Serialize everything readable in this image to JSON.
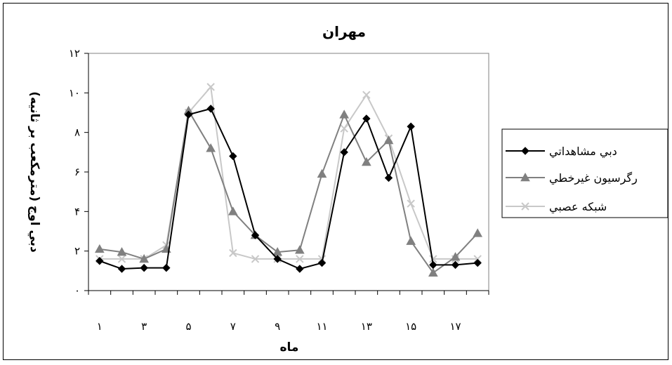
{
  "chart_data": {
    "type": "line",
    "title": "مهران",
    "xlabel": "ماه",
    "ylabel": "دبي اوج (مترمكعب بر ثانيه)",
    "x": [
      1,
      2,
      3,
      4,
      5,
      6,
      7,
      8,
      9,
      10,
      11,
      12,
      13,
      14,
      15,
      16,
      17,
      18
    ],
    "x_tick_labels": [
      "۱",
      "۳",
      "۵",
      "۷",
      "۹",
      "۱۱",
      "۱۳",
      "۱۵",
      "۱۷"
    ],
    "x_tick_values": [
      1,
      3,
      5,
      7,
      9,
      11,
      13,
      15,
      17
    ],
    "y_tick_labels": [
      "۰",
      "۲",
      "۴",
      "۶",
      "۸",
      "۱۰",
      "۱۲"
    ],
    "y_tick_values": [
      0,
      2,
      4,
      6,
      8,
      10,
      12
    ],
    "ylim": [
      0,
      12
    ],
    "xlim": [
      0.5,
      18.5
    ],
    "grid": false,
    "legend_position": "right",
    "series": [
      {
        "name": "دبي مشاهداتي",
        "color": "#000000",
        "marker": "diamond",
        "values": [
          1.5,
          1.1,
          1.15,
          1.15,
          8.9,
          9.2,
          6.8,
          2.8,
          1.6,
          1.1,
          1.4,
          7.0,
          8.7,
          5.7,
          8.3,
          1.3,
          1.3,
          1.4
        ]
      },
      {
        "name": "رگرسيون غيرخطي",
        "color": "#808080",
        "marker": "triangle",
        "values": [
          2.1,
          1.95,
          1.6,
          2.1,
          9.1,
          7.2,
          4.0,
          2.8,
          1.95,
          2.05,
          5.9,
          8.9,
          6.5,
          7.6,
          2.5,
          0.9,
          1.7,
          2.9
        ]
      },
      {
        "name": "شبكه عصبي",
        "color": "#c8c8c8",
        "marker": "x",
        "values": [
          1.6,
          1.6,
          1.6,
          2.3,
          9.0,
          10.3,
          1.9,
          1.6,
          1.6,
          1.6,
          1.6,
          8.2,
          9.9,
          7.7,
          4.4,
          1.6,
          1.6,
          1.6
        ]
      }
    ]
  }
}
